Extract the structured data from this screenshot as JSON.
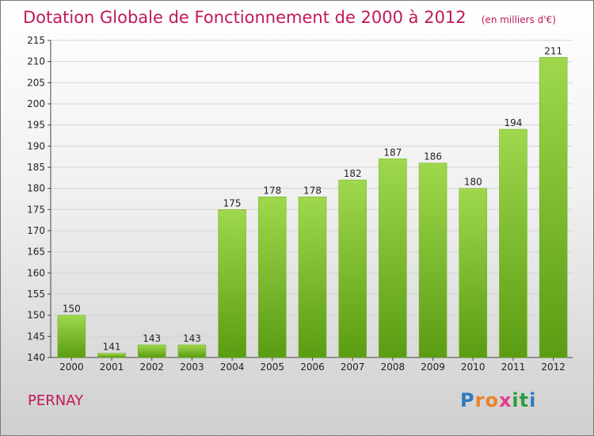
{
  "title": "Dotation Globale de Fonctionnement de 2000 à 2012",
  "subtitle": "(en milliers d'€)",
  "commune": "PERNAY",
  "logo": {
    "letters": [
      "P",
      "r",
      "o",
      "x",
      "i",
      "t",
      "i"
    ],
    "colors": [
      "#2e7bbf",
      "#e8832a",
      "#e8832a",
      "#e83a8a",
      "#2e9c3e",
      "#2e9c3e",
      "#2e7bbf"
    ]
  },
  "colors": {
    "title": "#c2185b",
    "bar_top": "#9fd84c",
    "bar_bottom": "#5a9c12"
  },
  "chart_data": {
    "type": "bar",
    "title": "Dotation Globale de Fonctionnement de 2000 à 2012",
    "subtitle": "(en milliers d'€)",
    "categories": [
      "2000",
      "2001",
      "2002",
      "2003",
      "2004",
      "2005",
      "2006",
      "2007",
      "2008",
      "2009",
      "2010",
      "2011",
      "2012"
    ],
    "values": [
      150,
      141,
      143,
      143,
      175,
      178,
      178,
      182,
      187,
      186,
      180,
      194,
      211
    ],
    "ylim": [
      140,
      215
    ],
    "yticks": [
      140,
      145,
      150,
      155,
      160,
      165,
      170,
      175,
      180,
      185,
      190,
      195,
      200,
      205,
      210,
      215
    ],
    "grid": true,
    "xlabel": "",
    "ylabel": ""
  }
}
